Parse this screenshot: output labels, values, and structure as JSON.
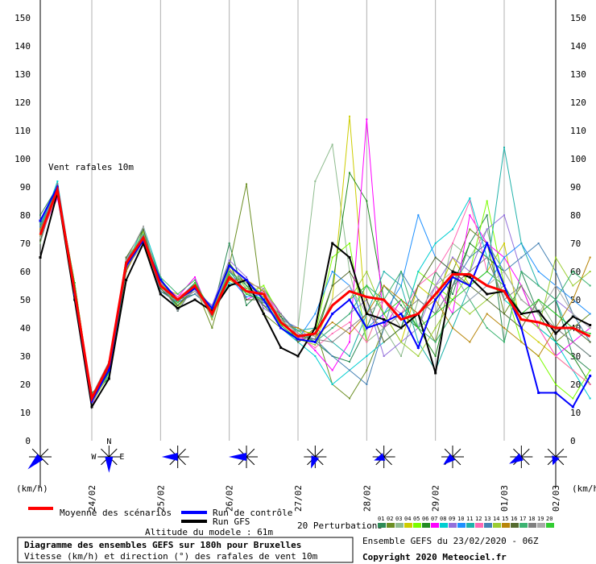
{
  "chart_data": {
    "type": "line",
    "title": "Diagramme des ensembles GEFS sur 180h pour Bruxelles",
    "subtitle": "Vitesse (km/h) et direction (°) des rafales de vent 10m",
    "inner_label": "Vent rafales 10m",
    "ylabel": "(km/h)",
    "ylim": [
      0,
      150
    ],
    "yticks": [
      0,
      10,
      20,
      30,
      40,
      50,
      60,
      70,
      80,
      90,
      100,
      110,
      120,
      130,
      140,
      150
    ],
    "x_range_hours": [
      0,
      180
    ],
    "x_step_hours": 6,
    "date_labels": [
      {
        "label": "24/02",
        "hour": 18
      },
      {
        "label": "25/02",
        "hour": 42
      },
      {
        "label": "26/02",
        "hour": 66
      },
      {
        "label": "27/02",
        "hour": 90
      },
      {
        "label": "28/02",
        "hour": 114
      },
      {
        "label": "29/02",
        "hour": 138
      },
      {
        "label": "01/03",
        "hour": 162
      },
      {
        "label": "02/03",
        "hour": 186
      }
    ],
    "grid": true,
    "series": [
      {
        "name": "Moyenne des scénarios",
        "color": "#ff0000",
        "kind": "mean",
        "values": [
          73,
          89,
          53,
          15,
          27,
          63,
          72,
          55,
          50,
          55,
          45,
          58,
          53,
          52,
          42,
          37,
          38,
          48,
          53,
          51,
          50,
          43,
          45,
          52,
          59,
          59,
          55,
          53,
          43,
          42,
          40,
          40,
          37
        ]
      },
      {
        "name": "Run de contrôle",
        "color": "#0000ff",
        "kind": "control",
        "values": [
          78,
          90,
          52,
          14,
          25,
          62,
          71,
          57,
          50,
          54,
          47,
          62,
          57,
          50,
          40,
          36,
          35,
          45,
          50,
          40,
          42,
          45,
          33,
          50,
          58,
          55,
          70,
          55,
          40,
          17,
          17,
          12,
          23
        ]
      },
      {
        "name": "Run GFS",
        "color": "#000000",
        "kind": "gfs",
        "values": [
          65,
          88,
          50,
          12,
          22,
          57,
          70,
          52,
          47,
          50,
          46,
          55,
          57,
          45,
          33,
          30,
          40,
          70,
          65,
          45,
          43,
          40,
          45,
          24,
          60,
          58,
          52,
          53,
          45,
          46,
          38,
          44,
          41
        ]
      }
    ],
    "perturbations": [
      {
        "values": [
          80,
          90,
          55,
          13,
          27,
          64,
          73,
          56,
          50,
          56,
          45,
          70,
          48,
          54,
          45,
          38,
          35,
          30,
          28,
          40,
          55,
          48,
          40,
          60,
          52,
          70,
          80,
          35,
          60,
          45,
          50,
          30,
          25
        ]
      },
      {
        "values": [
          76,
          88,
          54,
          16,
          25,
          63,
          74,
          58,
          47,
          55,
          40,
          62,
          91,
          45,
          40,
          35,
          40,
          20,
          15,
          25,
          40,
          50,
          45,
          35,
          60,
          75,
          70,
          45,
          55,
          40,
          35,
          40,
          45
        ]
      },
      {
        "values": [
          70,
          91,
          52,
          14,
          23,
          61,
          70,
          55,
          49,
          53,
          48,
          60,
          56,
          52,
          43,
          40,
          92,
          105,
          60,
          35,
          40,
          30,
          50,
          45,
          70,
          65,
          75,
          50,
          45,
          50,
          40,
          35,
          30
        ]
      },
      {
        "values": [
          74,
          87,
          56,
          15,
          26,
          62,
          71,
          54,
          52,
          57,
          44,
          57,
          53,
          50,
          41,
          36,
          35,
          50,
          115,
          40,
          45,
          35,
          55,
          50,
          65,
          55,
          60,
          70,
          40,
          35,
          30,
          25,
          20
        ]
      },
      {
        "values": [
          72,
          89,
          53,
          13,
          24,
          65,
          72,
          57,
          48,
          54,
          46,
          59,
          52,
          55,
          44,
          39,
          38,
          65,
          70,
          35,
          50,
          40,
          60,
          55,
          50,
          60,
          85,
          55,
          35,
          30,
          20,
          15,
          25
        ]
      },
      {
        "values": [
          78,
          90,
          51,
          17,
          22,
          60,
          75,
          53,
          50,
          52,
          47,
          63,
          55,
          48,
          42,
          37,
          36,
          55,
          95,
          85,
          50,
          45,
          40,
          30,
          55,
          70,
          65,
          60,
          50,
          45,
          35,
          30,
          20
        ]
      },
      {
        "values": [
          73,
          86,
          55,
          12,
          28,
          64,
          73,
          56,
          51,
          58,
          43,
          61,
          50,
          53,
          45,
          38,
          32,
          25,
          35,
          114,
          40,
          50,
          45,
          55,
          45,
          80,
          70,
          65,
          55,
          40,
          30,
          35,
          40
        ]
      },
      {
        "values": [
          75,
          92,
          54,
          14,
          25,
          62,
          76,
          58,
          46,
          55,
          45,
          56,
          54,
          51,
          40,
          35,
          30,
          20,
          25,
          30,
          35,
          40,
          60,
          70,
          75,
          86,
          65,
          50,
          45,
          40,
          35,
          25,
          15
        ]
      },
      {
        "values": [
          71,
          88,
          52,
          16,
          24,
          63,
          72,
          54,
          49,
          53,
          48,
          64,
          58,
          47,
          43,
          40,
          35,
          40,
          45,
          50,
          30,
          35,
          40,
          55,
          65,
          60,
          75,
          80,
          60,
          55,
          50,
          45,
          40
        ]
      },
      {
        "values": [
          77,
          89,
          56,
          13,
          27,
          61,
          74,
          57,
          50,
          56,
          44,
          58,
          51,
          52,
          41,
          36,
          45,
          60,
          55,
          40,
          45,
          55,
          80,
          65,
          60,
          50,
          55,
          65,
          70,
          60,
          55,
          50,
          45
        ]
      },
      {
        "values": [
          74,
          90,
          53,
          15,
          23,
          65,
          71,
          55,
          48,
          54,
          46,
          60,
          53,
          50,
          44,
          39,
          40,
          35,
          30,
          45,
          60,
          55,
          35,
          25,
          40,
          55,
          60,
          104,
          70,
          55,
          50,
          35,
          30
        ]
      },
      {
        "values": [
          72,
          87,
          55,
          14,
          26,
          62,
          73,
          56,
          51,
          55,
          45,
          62,
          56,
          54,
          42,
          37,
          33,
          38,
          42,
          35,
          50,
          45,
          55,
          60,
          70,
          85,
          60,
          55,
          45,
          40,
          30,
          25,
          20
        ]
      },
      {
        "values": [
          76,
          91,
          54,
          16,
          25,
          64,
          72,
          53,
          49,
          52,
          47,
          59,
          52,
          49,
          45,
          38,
          36,
          30,
          25,
          20,
          40,
          60,
          50,
          45,
          55,
          65,
          70,
          60,
          65,
          70,
          60,
          45,
          35
        ]
      },
      {
        "values": [
          73,
          88,
          52,
          13,
          24,
          63,
          74,
          57,
          47,
          56,
          43,
          61,
          54,
          51,
          43,
          36,
          34,
          45,
          50,
          60,
          45,
          35,
          30,
          40,
          50,
          45,
          50,
          55,
          45,
          40,
          65,
          55,
          60
        ]
      },
      {
        "values": [
          75,
          89,
          56,
          15,
          27,
          60,
          72,
          55,
          50,
          53,
          46,
          57,
          57,
          53,
          41,
          40,
          37,
          42,
          38,
          45,
          55,
          50,
          45,
          50,
          40,
          35,
          45,
          40,
          35,
          30,
          40,
          50,
          65
        ]
      },
      {
        "values": [
          71,
          90,
          53,
          14,
          26,
          65,
          75,
          54,
          48,
          54,
          45,
          63,
          50,
          50,
          44,
          35,
          38,
          55,
          60,
          50,
          35,
          40,
          55,
          65,
          60,
          55,
          50,
          45,
          40,
          50,
          45,
          40,
          35
        ]
      },
      {
        "values": [
          77,
          87,
          55,
          12,
          22,
          62,
          73,
          58,
          52,
          57,
          44,
          60,
          55,
          52,
          42,
          39,
          35,
          40,
          45,
          55,
          50,
          60,
          40,
          35,
          45,
          50,
          40,
          35,
          60,
          55,
          50,
          60,
          55
        ]
      },
      {
        "values": [
          74,
          91,
          54,
          16,
          28,
          61,
          71,
          56,
          46,
          55,
          47,
          58,
          53,
          48,
          45,
          37,
          36,
          35,
          40,
          45,
          40,
          45,
          50,
          45,
          55,
          60,
          65,
          50,
          55,
          45,
          40,
          35,
          30
        ]
      },
      {
        "values": [
          72,
          88,
          52,
          13,
          25,
          64,
          76,
          55,
          50,
          53,
          45,
          62,
          56,
          54,
          43,
          38,
          37,
          50,
          55,
          45,
          50,
          40,
          45,
          55,
          60,
          50,
          55,
          60,
          50,
          45,
          55,
          45,
          40
        ]
      },
      {
        "values": [
          78,
          89,
          56,
          15,
          24,
          63,
          72,
          57,
          49,
          56,
          46,
          59,
          52,
          50,
          41,
          36,
          35,
          45,
          50,
          55,
          45,
          50,
          40,
          45,
          50,
          55,
          60,
          55,
          45,
          50,
          45,
          40,
          38
        ]
      }
    ],
    "perturbation_colors": [
      "#2e8b57",
      "#6b8e23",
      "#8fbc8f",
      "#cdcd00",
      "#7cfc00",
      "#228b22",
      "#ff00ff",
      "#00ced1",
      "#9370db",
      "#1e90ff",
      "#20b2aa",
      "#ff69b4",
      "#4682b4",
      "#9acd32",
      "#b8860b",
      "#556b2f",
      "#3cb371",
      "#808080",
      "#a9a9a9",
      "#32cd32"
    ],
    "perturbation_labels": [
      "01",
      "02",
      "03",
      "04",
      "05",
      "06",
      "07",
      "08",
      "09",
      "10",
      "11",
      "12",
      "13",
      "14",
      "15",
      "16",
      "17",
      "18",
      "19",
      "20"
    ],
    "wind_roses": [
      {
        "hour": 0,
        "dir": 225,
        "len": 1.0
      },
      {
        "hour": 24,
        "dir": 180,
        "len": 0.9,
        "compass": true
      },
      {
        "hour": 48,
        "dir": 270,
        "len": 0.9
      },
      {
        "hour": 72,
        "dir": 270,
        "len": 1.0
      },
      {
        "hour": 96,
        "dir": 200,
        "len": 0.7
      },
      {
        "hour": 120,
        "dir": 250,
        "len": 0.6
      },
      {
        "hour": 144,
        "dir": 230,
        "len": 0.7
      },
      {
        "hour": 168,
        "dir": 240,
        "len": 0.8
      },
      {
        "hour": 180,
        "dir": 200,
        "len": 0.5
      }
    ]
  },
  "legend": {
    "mean_label": "Moyenne des scénarios",
    "control_label": "Run de contrôle",
    "gfs_label": "Run GFS",
    "perturbations_label": "20 Perturbations",
    "altitude_label": "Altitude du modele : 61m"
  },
  "footer": {
    "title": "Diagramme des ensembles GEFS sur 180h pour Bruxelles",
    "subtitle": "Vitesse (km/h) et direction (°) des rafales de vent 10m",
    "run_info": "Ensemble GEFS du 23/02/2020 - 06Z",
    "copyright": "Copyright 2020 Meteociel.fr"
  },
  "axis_unit_left": "(km/h)",
  "axis_unit_right": "(km/h)"
}
